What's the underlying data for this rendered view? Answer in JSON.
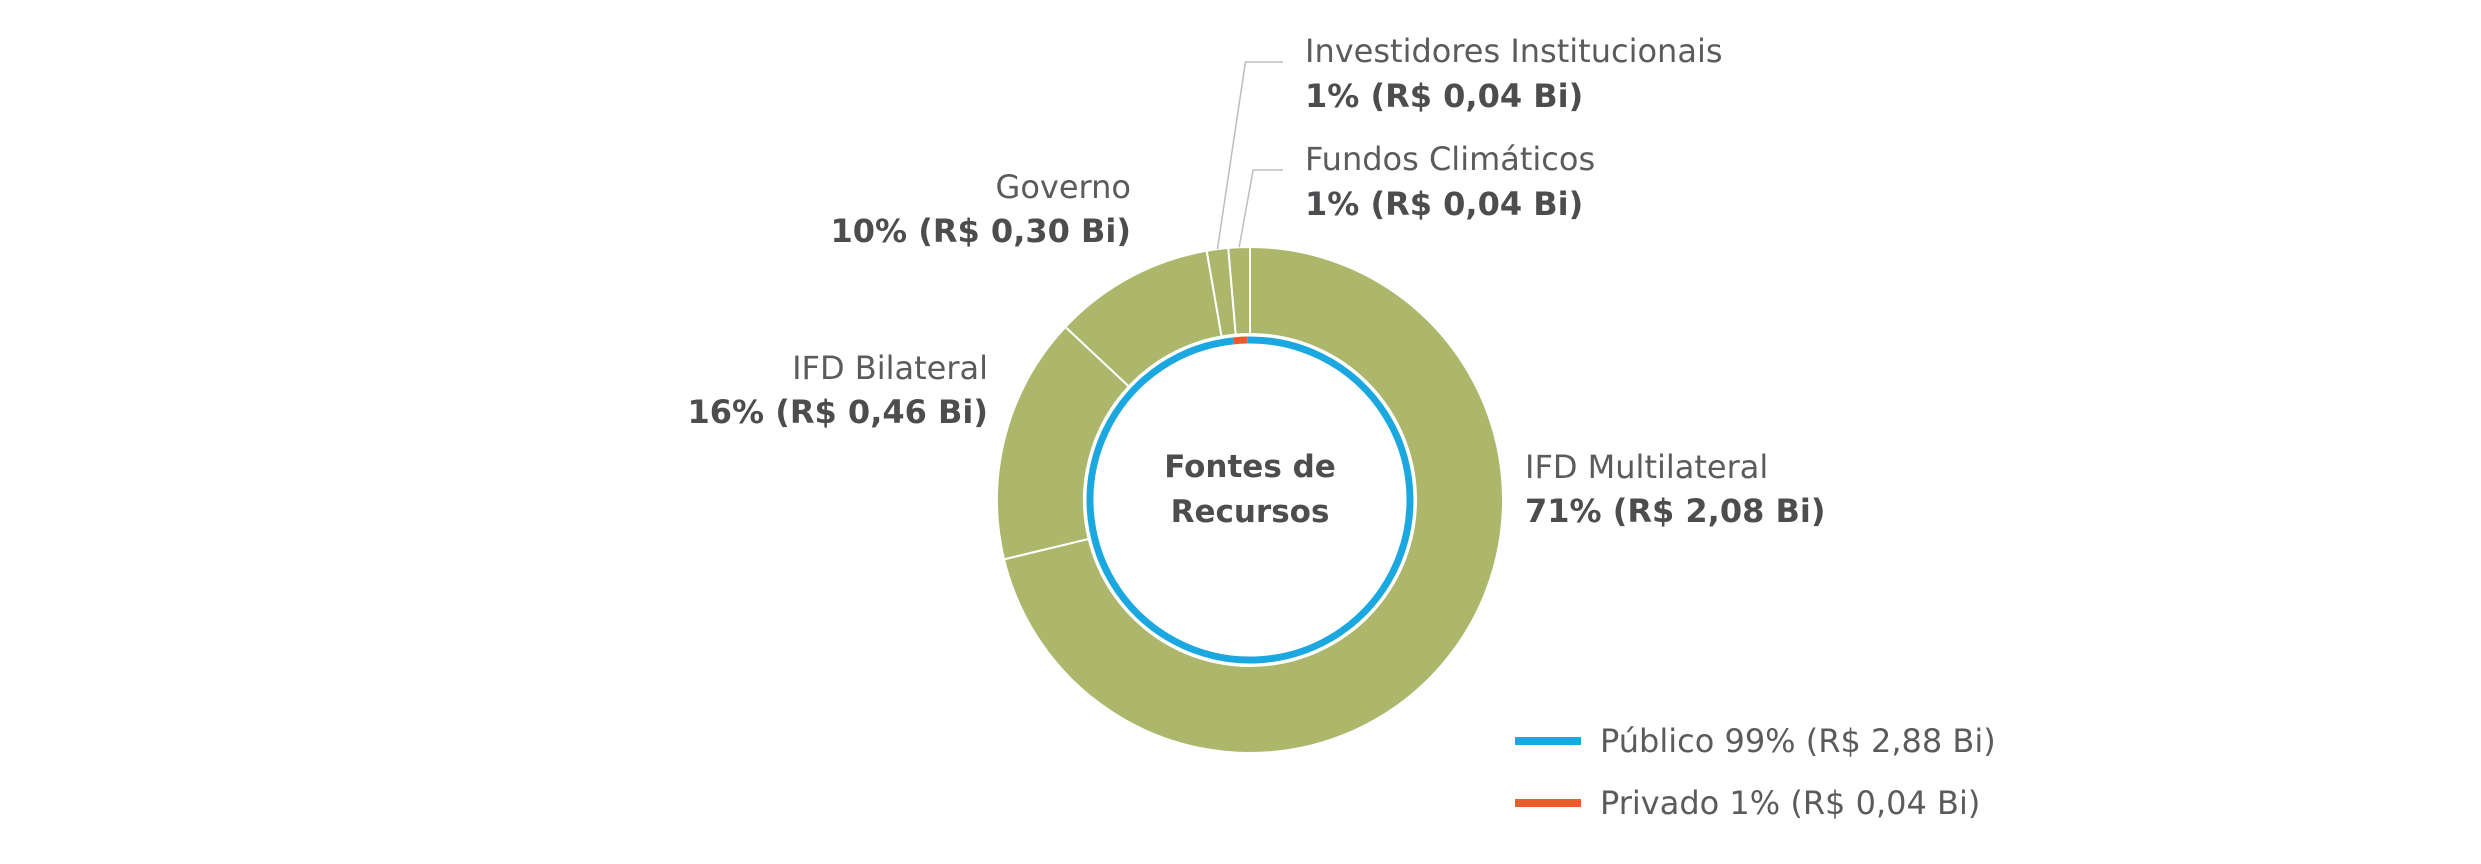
{
  "chart_data": {
    "type": "pie",
    "center_label": [
      "Fontes de",
      "Recursos"
    ],
    "outer_ring": {
      "color": "#adb76c",
      "slices": [
        {
          "name": "IFD Multilateral",
          "value_label": "71% (R$ 2,08 Bi)",
          "percent": 71,
          "amount_bi": 2.08
        },
        {
          "name": "IFD Bilateral",
          "value_label": "16% (R$ 0,46 Bi)",
          "percent": 16,
          "amount_bi": 0.46
        },
        {
          "name": "Governo",
          "value_label": "10% (R$ 0,30 Bi)",
          "percent": 10,
          "amount_bi": 0.3
        },
        {
          "name": "Investidores Institucionais",
          "value_label": "1% (R$ 0,04 Bi)",
          "percent": 1,
          "amount_bi": 0.04
        },
        {
          "name": "Fundos Climáticos",
          "value_label": "1% (R$ 0,04 Bi)",
          "percent": 1,
          "amount_bi": 0.04
        }
      ]
    },
    "inner_ring": {
      "slices": [
        {
          "name": "Público",
          "label": "Público 99% (R$ 2,88 Bi)",
          "percent": 99,
          "amount_bi": 2.88,
          "color": "#1ba8e0"
        },
        {
          "name": "Privado",
          "label": "Privado 1% (R$ 0,04 Bi)",
          "percent": 1,
          "amount_bi": 0.04,
          "color": "#ef5a2a"
        }
      ]
    },
    "legend_position": "bottom-right"
  }
}
